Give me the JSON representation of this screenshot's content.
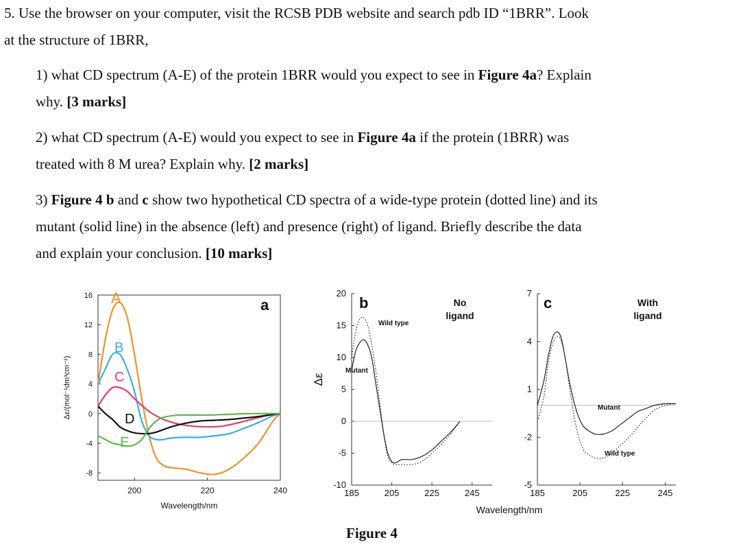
{
  "question": {
    "intro_line1": "5. Use the browser on your computer, visit the RCSB PDB website and search pdb ID “1BRR”. Look",
    "intro_line2": "at the structure of 1BRR,",
    "q1_a": "1) what CD spectrum (A-E) of the protein 1BRR would you expect to see in ",
    "q1_bold": "Figure 4a",
    "q1_b": "? Explain",
    "q1_c": "why. ",
    "q1_marks": "[3 marks]",
    "q2_a": "2) what CD spectrum (A-E) would you expect to see in ",
    "q2_bold": "Figure 4a",
    "q2_b": " if the protein (1BRR) was",
    "q2_c": "treated with 8 M urea? Explain why. ",
    "q2_marks": "[2 marks]",
    "q3_a": "3) ",
    "q3_bold1": "Figure 4 b",
    "q3_and": " and ",
    "q3_bold2": "c",
    "q3_b": " show two hypothetical CD spectra of a wide-type protein (dotted line) and its",
    "q3_c": "mutant (solid line) in the absence (left) and presence (right) of ligand. Briefly describe the data",
    "q3_d": "and explain your conclusion. ",
    "q3_marks": "[10 marks]"
  },
  "figure_caption": "Figure 4",
  "colors": {
    "A": "#f0902a",
    "B": "#3aaee0",
    "C": "#e0406a",
    "D": "#111111",
    "E": "#5cb84a"
  },
  "chart_data": [
    {
      "type": "line",
      "panel_label": "a",
      "xlabel": "Wavelength/nm",
      "ylabel": "Δε/(mol⁻¹dm³cm⁻¹)",
      "xlim": [
        190,
        240
      ],
      "ylim": [
        -9,
        16
      ],
      "xticks": [
        200,
        220,
        240
      ],
      "yticks": [
        16,
        12,
        8,
        4,
        0,
        -4,
        -8
      ],
      "series": [
        {
          "name": "A",
          "x": [
            190,
            192,
            194,
            196,
            198,
            200,
            202,
            204,
            206,
            208,
            210,
            214,
            218,
            222,
            226,
            230,
            234,
            238,
            240
          ],
          "y": [
            4,
            10,
            14,
            15,
            13,
            8,
            2,
            -3,
            -6,
            -7,
            -7.3,
            -7.5,
            -8,
            -8.2,
            -7.5,
            -6,
            -4,
            -1,
            0
          ]
        },
        {
          "name": "B",
          "x": [
            190,
            192,
            194,
            196,
            198,
            200,
            202,
            204,
            206,
            208,
            210,
            214,
            218,
            222,
            226,
            230,
            234,
            238,
            240
          ],
          "y": [
            4,
            6,
            8,
            8,
            6,
            3,
            -1,
            -3,
            -3.5,
            -3.5,
            -3.3,
            -3.2,
            -3.2,
            -3,
            -2.7,
            -2,
            -1.2,
            -0.3,
            0
          ]
        },
        {
          "name": "C",
          "x": [
            190,
            192,
            194,
            196,
            198,
            200,
            204,
            208,
            212,
            216,
            220,
            224,
            228,
            232,
            236,
            240
          ],
          "y": [
            1,
            2.5,
            3.5,
            3.5,
            3,
            2,
            0.3,
            -0.8,
            -1.4,
            -1.7,
            -1.8,
            -1.7,
            -1.3,
            -0.8,
            -0.3,
            0
          ]
        },
        {
          "name": "D",
          "x": [
            190,
            192,
            194,
            196,
            198,
            200,
            202,
            204,
            206,
            210,
            214,
            218,
            222,
            226,
            230,
            234,
            238,
            240
          ],
          "y": [
            1,
            0,
            -0.8,
            -1.8,
            -2.3,
            -2.6,
            -2.7,
            -2.7,
            -2.5,
            -1.8,
            -1.3,
            -1,
            -0.9,
            -0.8,
            -0.6,
            -0.4,
            -0.1,
            0
          ]
        },
        {
          "name": "E",
          "x": [
            190,
            192,
            194,
            196,
            198,
            200,
            202,
            204,
            206,
            208,
            212,
            216,
            220,
            226,
            232,
            240
          ],
          "y": [
            -3,
            -3.5,
            -4,
            -4.2,
            -4.4,
            -4.2,
            -3.5,
            -2,
            -1,
            -0.5,
            -0.2,
            -0.2,
            -0.2,
            -0.1,
            0,
            0
          ]
        }
      ]
    },
    {
      "type": "line",
      "panel_label": "b",
      "annotation": "No ligand",
      "ylabel": "Δε",
      "xlim": [
        185,
        255
      ],
      "ylim": [
        -10,
        20
      ],
      "xticks": [
        185,
        205,
        225,
        245
      ],
      "yticks": [
        20,
        15,
        10,
        5,
        0,
        -5,
        -10
      ],
      "series": [
        {
          "name": "Mutant",
          "style": "solid",
          "x": [
            185,
            187,
            189,
            191,
            193,
            195,
            197,
            199,
            201,
            203,
            205,
            207,
            210,
            215,
            220,
            225,
            230,
            235,
            239
          ],
          "y": [
            8,
            11,
            12.3,
            12.8,
            12,
            10,
            6,
            2,
            -2,
            -5,
            -6.3,
            -6.5,
            -6,
            -6,
            -5.5,
            -4.5,
            -3,
            -1.5,
            0
          ]
        },
        {
          "name": "Wild type",
          "style": "dotted",
          "x": [
            185,
            187,
            189,
            191,
            193,
            195,
            197,
            199,
            201,
            203,
            205,
            207,
            210,
            215,
            220,
            225,
            230,
            235,
            239
          ],
          "y": [
            10,
            14,
            16,
            16.2,
            15,
            12,
            8,
            3,
            -2,
            -5.5,
            -6.5,
            -6.8,
            -6.8,
            -6.8,
            -6.3,
            -5,
            -3.5,
            -1.7,
            0
          ]
        }
      ]
    },
    {
      "type": "line",
      "panel_label": "c",
      "annotation": "With ligand",
      "xlabel": "Wavelength/nm",
      "xlim": [
        185,
        250
      ],
      "ylim": [
        -5,
        7
      ],
      "xticks": [
        185,
        205,
        225,
        245
      ],
      "yticks": [
        7,
        4,
        1,
        -2,
        -5
      ],
      "series": [
        {
          "name": "Mutant",
          "style": "solid",
          "x": [
            185,
            188,
            190,
            192,
            194,
            196,
            198,
            200,
            202,
            204,
            206,
            208,
            212,
            216,
            220,
            224,
            228,
            232,
            236,
            240,
            245,
            250
          ],
          "y": [
            0,
            1.5,
            3,
            4.2,
            4.6,
            4.3,
            3,
            1.5,
            0.3,
            -0.6,
            -1.2,
            -1.5,
            -1.8,
            -1.8,
            -1.6,
            -1.2,
            -0.8,
            -0.4,
            -0.2,
            0,
            0.1,
            0.1
          ]
        },
        {
          "name": "Wild type",
          "style": "dotted",
          "x": [
            185,
            188,
            190,
            192,
            194,
            196,
            198,
            200,
            202,
            204,
            206,
            208,
            212,
            216,
            220,
            224,
            228,
            232,
            236,
            240,
            245,
            250
          ],
          "y": [
            -1,
            0.5,
            2.5,
            3.8,
            4.3,
            4.1,
            3,
            1.2,
            -0.5,
            -1.8,
            -2.6,
            -3,
            -3.3,
            -3.3,
            -3,
            -2.5,
            -2,
            -1.4,
            -0.8,
            -0.3,
            0,
            0.1
          ]
        }
      ]
    }
  ]
}
